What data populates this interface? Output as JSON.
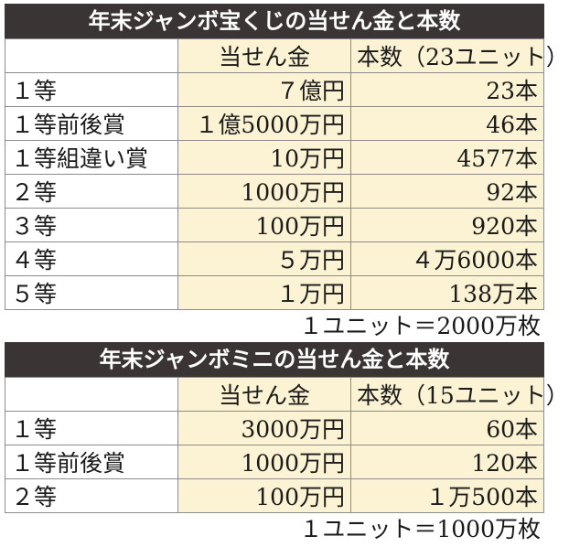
{
  "tables": [
    {
      "title": "年末ジャンボ宝くじの当せん金と本数",
      "header": [
        "",
        "当せん金",
        "本数（23ユニット）"
      ],
      "rows": [
        [
          "１等",
          "７億円",
          "23本"
        ],
        [
          "１等前後賞",
          "１億5000万円",
          "46本"
        ],
        [
          "１等組違い賞",
          "10万円",
          "4577本"
        ],
        [
          "２等",
          "1000万円",
          "92本"
        ],
        [
          "３等",
          "100万円",
          "920本"
        ],
        [
          "４等",
          "５万円",
          "４万6000本"
        ],
        [
          "５等",
          "１万円",
          "138万本"
        ]
      ],
      "note": "１ユニット＝2000万枚"
    },
    {
      "title": "年末ジャンボミニの当せん金と本数",
      "header": [
        "",
        "当せん金",
        "本数（15ユニット）"
      ],
      "rows": [
        [
          "１等",
          "3000万円",
          "60本"
        ],
        [
          "１等前後賞",
          "1000万円",
          "120本"
        ],
        [
          "２等",
          "100万円",
          "１万500本"
        ]
      ],
      "note": "１ユニット＝1000万枚"
    }
  ]
}
